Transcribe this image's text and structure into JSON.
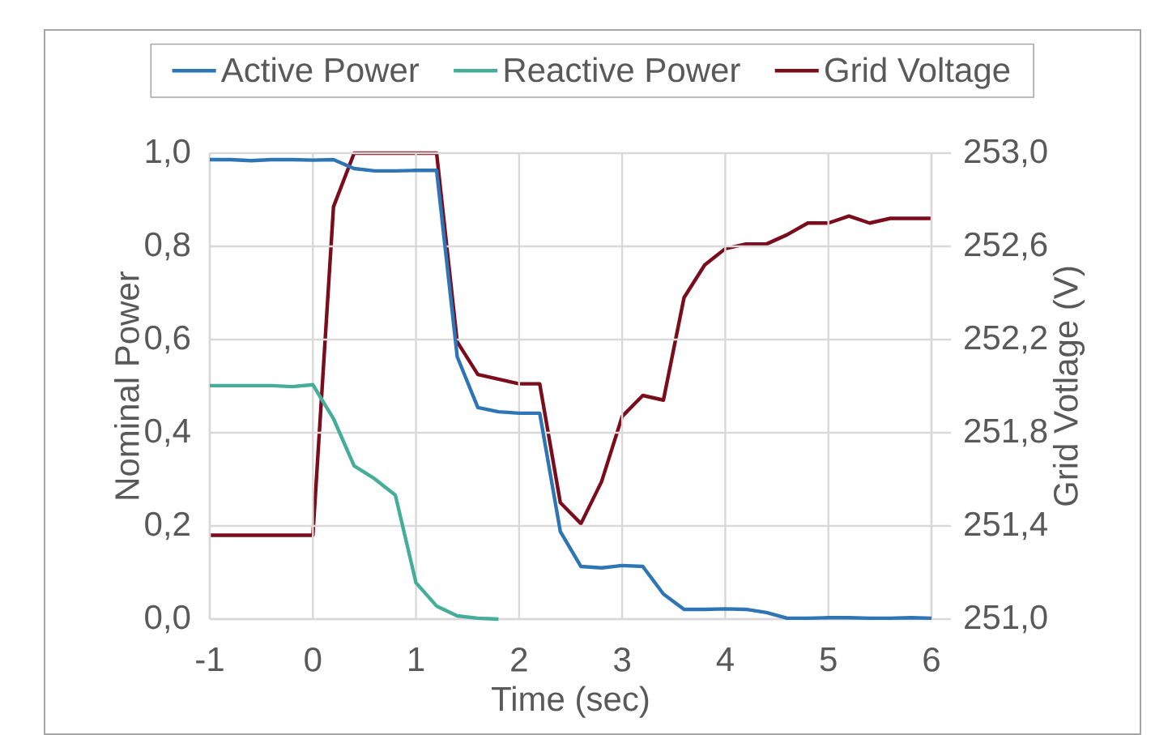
{
  "chart_data": {
    "type": "line",
    "xlabel": "Time (sec)",
    "ylabel": "Nominal Power",
    "y2label": "Grid Votlage (V)",
    "x": [
      -1,
      -0.8,
      -0.6,
      -0.4,
      -0.2,
      0,
      0.2,
      0.4,
      0.6,
      0.8,
      1.0,
      1.2,
      1.4,
      1.6,
      1.8,
      2.0,
      2.2,
      2.4,
      2.6,
      2.8,
      3.0,
      3.2,
      3.4,
      3.6,
      3.8,
      4.0,
      4.2,
      4.4,
      4.6,
      4.8,
      5.0,
      5.2,
      5.4,
      5.6,
      5.8,
      6.0
    ],
    "series": [
      {
        "name": "Active Power",
        "color": "#2e75b6",
        "values": [
          0.986,
          0.986,
          0.984,
          0.986,
          0.986,
          0.985,
          0.986,
          0.967,
          0.962,
          0.962,
          0.963,
          0.963,
          0.563,
          0.454,
          0.445,
          0.442,
          0.442,
          0.188,
          0.113,
          0.11,
          0.115,
          0.113,
          0.054,
          0.021,
          0.021,
          0.022,
          0.021,
          0.014,
          0.002,
          0.002,
          0.003,
          0.003,
          0.002,
          0.002,
          0.003,
          0.002
        ]
      },
      {
        "name": "Reactive Power",
        "color": "#45ad9a",
        "values": [
          0.501,
          0.501,
          0.501,
          0.501,
          0.499,
          0.503,
          0.43,
          0.329,
          0.301,
          0.266,
          0.078,
          0.028,
          0.007,
          0.002,
          0.0,
          null,
          null,
          null,
          null,
          null,
          null,
          null,
          null,
          null,
          null,
          null,
          null,
          null,
          null,
          null,
          null,
          null,
          null,
          null,
          null,
          null
        ]
      },
      {
        "name": "Grid Voltage",
        "color": "#7b0c1c",
        "axis": "y2",
        "values": [
          251.36,
          251.36,
          251.36,
          251.36,
          251.36,
          251.36,
          252.77,
          253.0,
          253.0,
          253.0,
          253.0,
          253.0,
          252.19,
          252.05,
          252.03,
          252.01,
          252.01,
          251.5,
          251.41,
          251.59,
          251.87,
          251.96,
          251.94,
          252.38,
          252.52,
          252.59,
          252.61,
          252.61,
          252.65,
          252.7,
          252.7,
          252.73,
          252.7,
          252.72,
          252.72,
          252.72
        ]
      }
    ],
    "xlim": [
      -1,
      6
    ],
    "xticks": [
      -1,
      0,
      1,
      2,
      3,
      4,
      5,
      6
    ],
    "ylim": [
      0,
      1.0
    ],
    "yticks": [
      {
        "value": 0,
        "label": "0,0"
      },
      {
        "value": 0.2,
        "label": "0,2"
      },
      {
        "value": 0.4,
        "label": "0,4"
      },
      {
        "value": 0.6,
        "label": "0,6"
      },
      {
        "value": 0.8,
        "label": "0,8"
      },
      {
        "value": 1.0,
        "label": "1,0"
      }
    ],
    "y2lim": [
      251.0,
      253.0
    ],
    "y2ticks": [
      {
        "value": 251.0,
        "label": "251,0"
      },
      {
        "value": 251.4,
        "label": "251,4"
      },
      {
        "value": 251.8,
        "label": "251,8"
      },
      {
        "value": 252.2,
        "label": "252,2"
      },
      {
        "value": 252.6,
        "label": "252,6"
      },
      {
        "value": 253.0,
        "label": "253,0"
      }
    ],
    "grid": true,
    "legend": "top"
  }
}
